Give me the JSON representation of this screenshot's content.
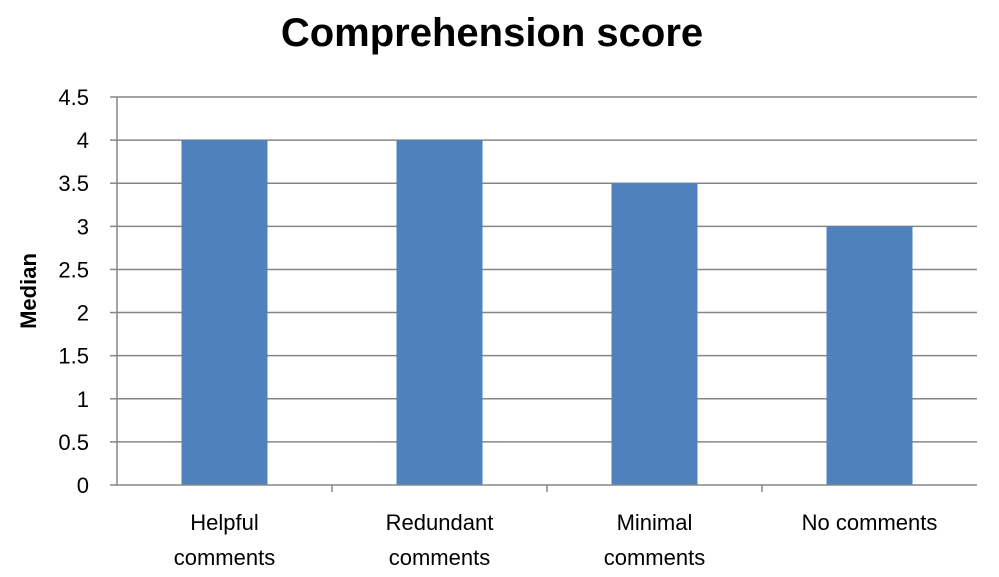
{
  "chart_data": {
    "type": "bar",
    "title": "Comprehension score",
    "xlabel": "",
    "ylabel": "Median",
    "categories": [
      [
        "Helpful",
        "comments"
      ],
      [
        "Redundant",
        "comments"
      ],
      [
        "Minimal",
        "comments"
      ],
      [
        "No comments"
      ]
    ],
    "values": [
      4,
      4,
      3.5,
      3
    ],
    "ylim": [
      0,
      4.5
    ],
    "yticks": [
      "0",
      "0.5",
      "1",
      "1.5",
      "2",
      "2.5",
      "3",
      "3.5",
      "4",
      "4.5"
    ],
    "grid": true,
    "legend": "none",
    "colors": {
      "bar": "#4f81bd",
      "grid": "#868686",
      "axis": "#868686"
    }
  }
}
